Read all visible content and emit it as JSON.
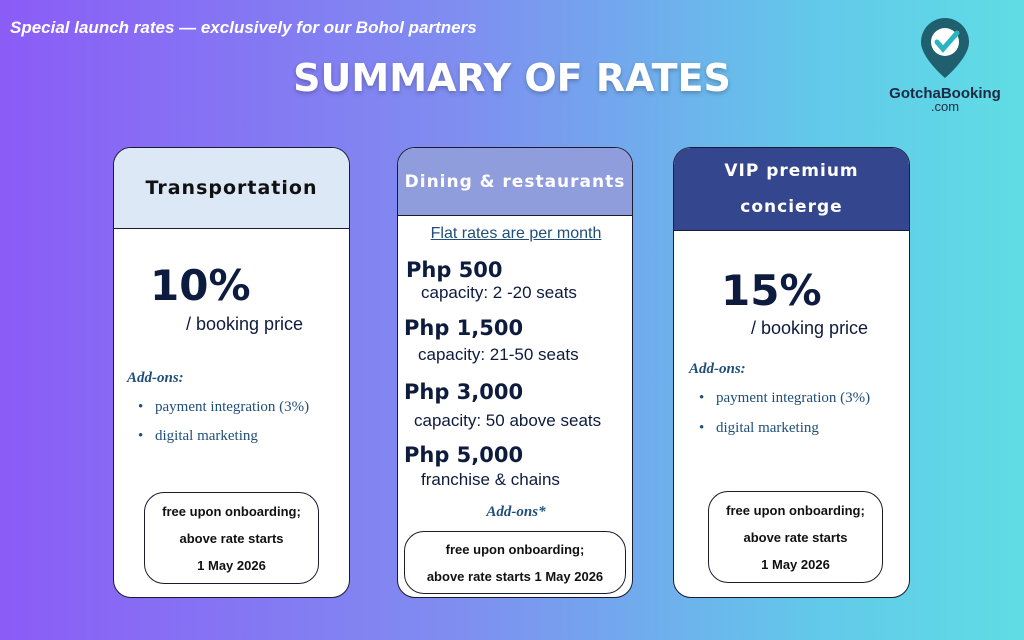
{
  "tagline": "Special launch rates — exclusively for our Bohol partners",
  "title": "SUMMARY OF RATES",
  "logo": {
    "name": "GotchaBooking",
    "suffix": ".com"
  },
  "cards": [
    {
      "header": "Transportation",
      "rate": "10%",
      "rate_note": "/ booking price",
      "addons_label": "Add-ons:",
      "addons": [
        "payment integration (3%)",
        "digital marketing"
      ],
      "notice": [
        "free upon onboarding;",
        "above rate starts",
        "1 May 2026"
      ]
    },
    {
      "header": "Dining & restaurants",
      "subtitle": "Flat rates are per month",
      "tiers": [
        {
          "price": "Php 500",
          "detail": "capacity: 2 -20 seats"
        },
        {
          "price": "Php 1,500",
          "detail": "capacity: 21-50 seats"
        },
        {
          "price": "Php 3,000",
          "detail": "capacity: 50 above seats"
        },
        {
          "price": "Php 5,000",
          "detail": "franchise & chains"
        }
      ],
      "addons_label": "Add-ons*",
      "notice": [
        "free upon onboarding;",
        "above rate starts 1 May 2026"
      ]
    },
    {
      "header": "VIP premium concierge",
      "rate": "15%",
      "rate_note": "/ booking price",
      "addons_label": "Add-ons:",
      "addons": [
        "payment integration (3%)",
        "digital marketing"
      ],
      "notice": [
        "free upon onboarding;",
        "above rate starts",
        "1 May 2026"
      ]
    }
  ]
}
